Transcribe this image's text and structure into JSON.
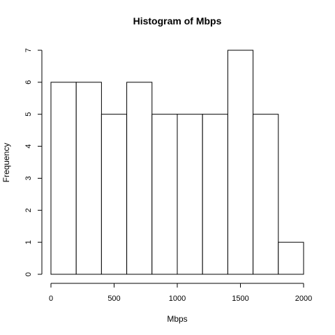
{
  "chart_data": {
    "type": "bar",
    "title": "Histogram of Mbps",
    "xlabel": "Mbps",
    "ylabel": "Frequency",
    "bin_edges": [
      0,
      200,
      400,
      600,
      800,
      1000,
      1200,
      1400,
      1600,
      1800,
      2000
    ],
    "values": [
      6,
      6,
      5,
      6,
      5,
      5,
      5,
      7,
      5,
      1
    ],
    "xlim": [
      0,
      2000
    ],
    "ylim": [
      0,
      7
    ],
    "xticks": [
      "0",
      "500",
      "1000",
      "1500",
      "2000"
    ],
    "yticks": [
      "0",
      "1",
      "2",
      "3",
      "4",
      "5",
      "6",
      "7"
    ],
    "grid": false,
    "bar_fill": "#ffffff",
    "bar_stroke": "#000000"
  }
}
